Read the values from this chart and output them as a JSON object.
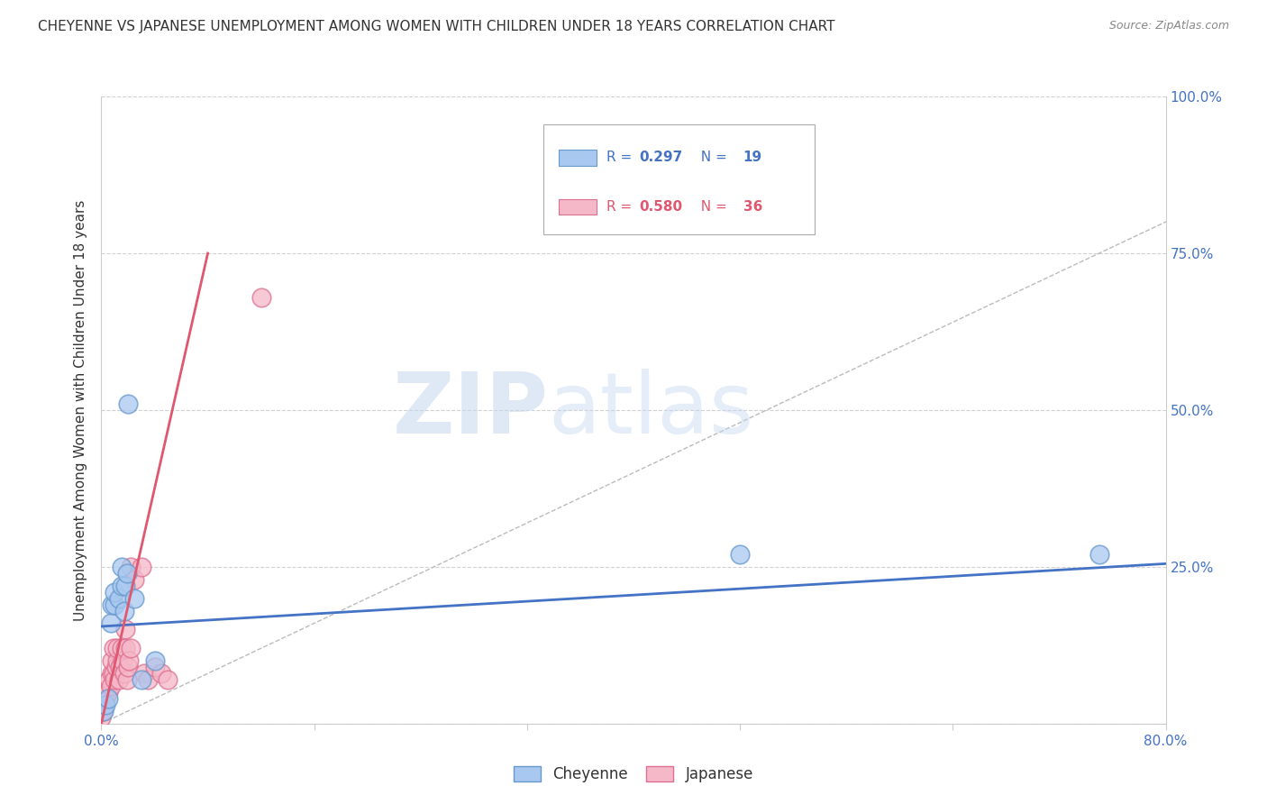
{
  "title": "CHEYENNE VS JAPANESE UNEMPLOYMENT AMONG WOMEN WITH CHILDREN UNDER 18 YEARS CORRELATION CHART",
  "source": "Source: ZipAtlas.com",
  "ylabel": "Unemployment Among Women with Children Under 18 years",
  "watermark_zip": "ZIP",
  "watermark_atlas": "atlas",
  "xlim": [
    0.0,
    0.8
  ],
  "ylim": [
    0.0,
    1.0
  ],
  "cheyenne_color": "#a8c8f0",
  "cheyenne_edge": "#6699cc",
  "japanese_color": "#f5b8c8",
  "japanese_edge": "#dd7090",
  "cheyenne_R": 0.297,
  "cheyenne_N": 19,
  "japanese_R": 0.58,
  "japanese_N": 36,
  "legend_blue": "#4472c4",
  "legend_pink": "#e05870",
  "cheyenne_line_color": "#4472c4",
  "japanese_line_color": "#e05870",
  "diagonal_line_color": "#bbbbbb",
  "background_color": "#ffffff",
  "grid_color": "#cccccc",
  "title_color": "#333333",
  "source_color": "#888888",
  "axis_label_color": "#333333",
  "tick_color": "#4472c4",
  "cheyenne_x": [
    0.002,
    0.003,
    0.005,
    0.007,
    0.008,
    0.01,
    0.01,
    0.013,
    0.015,
    0.015,
    0.017,
    0.018,
    0.019,
    0.02,
    0.025,
    0.03,
    0.04,
    0.48,
    0.75
  ],
  "cheyenne_y": [
    0.02,
    0.03,
    0.04,
    0.16,
    0.19,
    0.19,
    0.21,
    0.2,
    0.22,
    0.25,
    0.18,
    0.22,
    0.24,
    0.51,
    0.2,
    0.07,
    0.1,
    0.27,
    0.27
  ],
  "japanese_x": [
    0.0,
    0.001,
    0.002,
    0.003,
    0.004,
    0.005,
    0.006,
    0.007,
    0.008,
    0.008,
    0.009,
    0.009,
    0.01,
    0.011,
    0.012,
    0.012,
    0.013,
    0.014,
    0.015,
    0.016,
    0.017,
    0.018,
    0.018,
    0.019,
    0.02,
    0.021,
    0.022,
    0.022,
    0.025,
    0.03,
    0.032,
    0.035,
    0.04,
    0.045,
    0.05,
    0.12
  ],
  "japanese_y": [
    0.01,
    0.02,
    0.03,
    0.04,
    0.05,
    0.05,
    0.07,
    0.06,
    0.08,
    0.1,
    0.08,
    0.12,
    0.07,
    0.09,
    0.1,
    0.12,
    0.07,
    0.09,
    0.12,
    0.1,
    0.08,
    0.12,
    0.15,
    0.07,
    0.09,
    0.1,
    0.12,
    0.25,
    0.23,
    0.25,
    0.08,
    0.07,
    0.09,
    0.08,
    0.07,
    0.68
  ],
  "cheyenne_regline_x": [
    0.0,
    0.8
  ],
  "cheyenne_regline_y": [
    0.155,
    0.255
  ],
  "japanese_regline_x": [
    0.0,
    0.08
  ],
  "japanese_regline_y": [
    0.0,
    0.75
  ]
}
